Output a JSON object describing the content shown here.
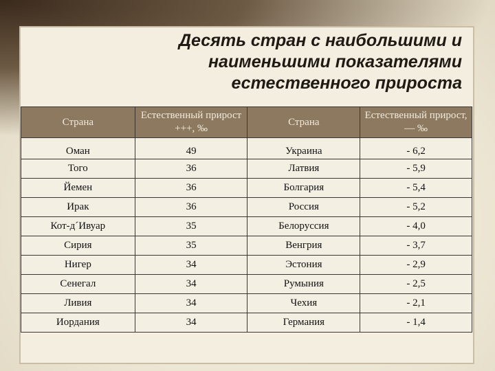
{
  "title_lines": [
    "Десять стран с наибольшими и",
    "наименьшими показателями",
    "естественного прироста"
  ],
  "table": {
    "headers": [
      "Страна",
      "Естественный прирост +++, ‰",
      "Страна",
      "Естественный прирост, — ‰"
    ],
    "rows": [
      [
        "Оман",
        "49",
        "Украина",
        "- 6,2"
      ],
      [
        "Того",
        "36",
        "Латвия",
        "- 5,9"
      ],
      [
        "Йемен",
        "36",
        "Болгария",
        "- 5,4"
      ],
      [
        "Ирак",
        "36",
        "Россия",
        "- 5,2"
      ],
      [
        "Кот-д´Ивуар",
        "35",
        "Белоруссия",
        "- 4,0"
      ],
      [
        "Сирия",
        "35",
        "Венгрия",
        "- 3,7"
      ],
      [
        "Нигер",
        "34",
        "Эстония",
        "- 2,9"
      ],
      [
        "Сенегал",
        "34",
        "Румыния",
        "- 2,5"
      ],
      [
        "Ливия",
        "34",
        "Чехия",
        "- 2,1"
      ],
      [
        "Иордания",
        "34",
        "Германия",
        "- 1,4"
      ]
    ]
  }
}
